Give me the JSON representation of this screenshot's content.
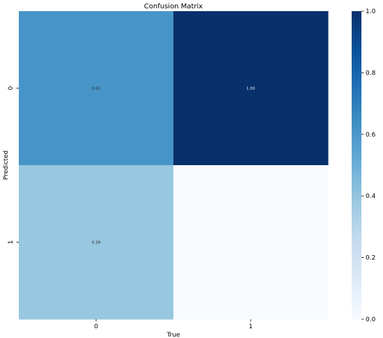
{
  "chart_data": {
    "type": "heatmap",
    "title": "Confusion Matrix",
    "xlabel": "True",
    "ylabel": "Predicted",
    "x_categories": [
      "0",
      "1"
    ],
    "y_categories": [
      "0",
      "1"
    ],
    "values": [
      [
        0.61,
        1.0
      ],
      [
        0.39,
        0.0
      ]
    ],
    "cell_labels": [
      [
        "0.61",
        "1.00"
      ],
      [
        "0.39",
        ""
      ]
    ],
    "colormap": "Blues",
    "vmin": 0.0,
    "vmax": 1.0,
    "colorbar_ticks": [
      0.0,
      0.2,
      0.4,
      0.6,
      0.8,
      1.0
    ],
    "colorbar_tick_labels": [
      "0.0",
      "0.2",
      "0.4",
      "0.6",
      "0.8",
      "1.0"
    ],
    "grid": false,
    "colorbar_position": "right"
  }
}
